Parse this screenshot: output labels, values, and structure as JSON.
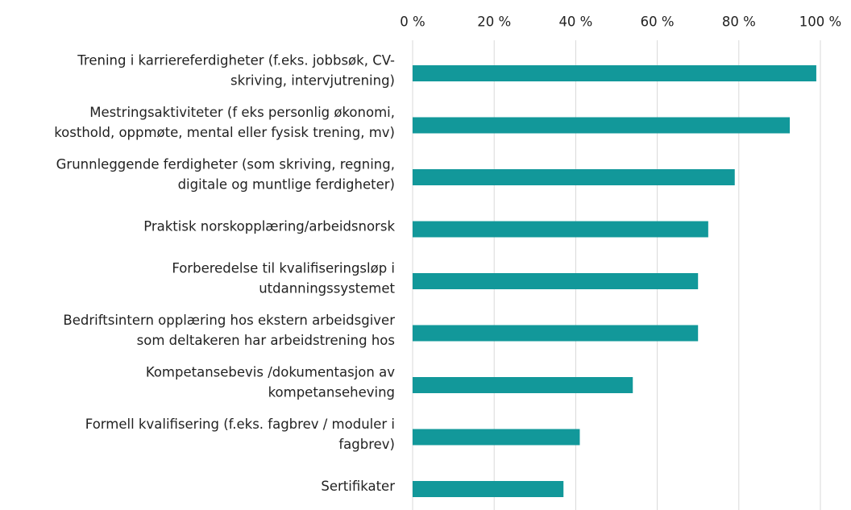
{
  "chart_data": {
    "type": "barh",
    "categories": [
      "Trening i karriereferdigheter (f.eks. jobbsøk, CV-\nskriving, intervjutrening)",
      "Mestringsaktiviteter (f eks personlig økonomi,\nkosthold, oppmøte, mental eller fysisk trening, mv)",
      "Grunnleggende ferdigheter (som skriving, regning,\ndigitale og muntlige ferdigheter)",
      "Praktisk norskopplæring/arbeidsnorsk",
      "Forberedelse til kvalifiseringsløp i\nutdanningssystemet",
      "Bedriftsintern opplæring hos ekstern arbeidsgiver\nsom deltakeren har arbeidstrening hos",
      "Kompetansebevis /dokumentasjon av\nkompetanseheving",
      "Formell kvalifisering (f.eks. fagbrev / moduler i\nfagbrev)",
      "Sertifikater"
    ],
    "values": [
      99,
      92.5,
      79,
      72.5,
      70,
      70,
      54,
      41,
      37
    ],
    "color": "#12989a",
    "xlim": [
      0,
      100
    ],
    "xticks": [
      {
        "value": 0,
        "label": "0 %"
      },
      {
        "value": 20,
        "label": "20 %"
      },
      {
        "value": 40,
        "label": "40 %"
      },
      {
        "value": 60,
        "label": "60 %"
      },
      {
        "value": 80,
        "label": "80 %"
      },
      {
        "value": 100,
        "label": "100 %"
      }
    ],
    "grid": true
  }
}
